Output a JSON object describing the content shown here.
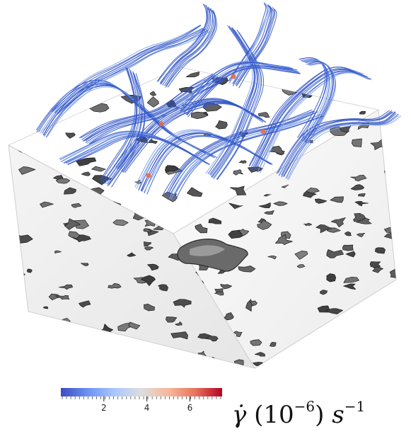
{
  "colorbar": {
    "ticks": [
      {
        "value": 2,
        "label": "2"
      },
      {
        "value": 4,
        "label": "4"
      },
      {
        "value": 6,
        "label": "6"
      }
    ],
    "range": [
      0,
      7.5
    ],
    "gradient": [
      "#3b4cc0",
      "#6f92f3",
      "#aac7fd",
      "#dddddd",
      "#f7b89c",
      "#e7745b",
      "#b40426"
    ],
    "label": {
      "symbol": "γ̇",
      "base": "10",
      "exponent": "−6",
      "unit": "s",
      "unit_exponent": "−1"
    }
  },
  "colors": {
    "streamline": "#3558c8",
    "streamline_highlight": "#7fa2ec",
    "hot_spot": "#e86a4a",
    "solid_face": "#ffffff",
    "pore": "#5a5a5a"
  }
}
